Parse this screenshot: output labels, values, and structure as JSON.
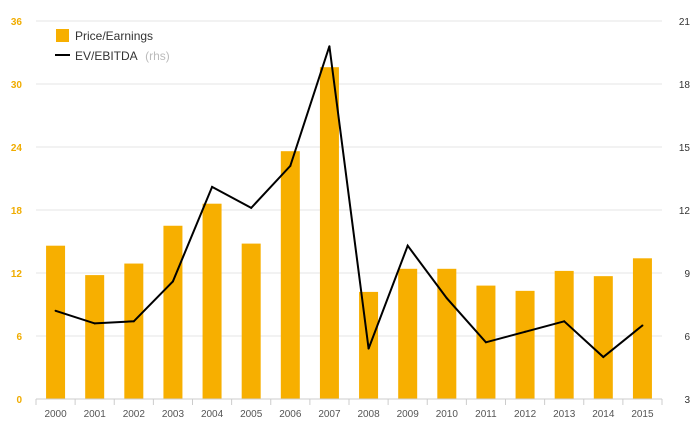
{
  "chart_data": {
    "type": "bar+line",
    "categories": [
      "2000",
      "2001",
      "2002",
      "2003",
      "2004",
      "2005",
      "2006",
      "2007",
      "2008",
      "2009",
      "2010",
      "2011",
      "2012",
      "2013",
      "2014",
      "2015"
    ],
    "series": [
      {
        "name": "Price/Earnings",
        "type": "bar",
        "axis": "left",
        "color": "#f7af00",
        "values": [
          14.6,
          11.8,
          12.9,
          16.5,
          18.6,
          14.8,
          23.6,
          31.6,
          10.2,
          12.4,
          12.4,
          10.8,
          10.3,
          12.2,
          11.7,
          13.4
        ]
      },
      {
        "name": "EV/EBITDA",
        "name_note": "(rhs)",
        "type": "line",
        "axis": "right",
        "color": "#000000",
        "values": [
          7.2,
          6.6,
          6.7,
          8.6,
          13.1,
          12.1,
          14.1,
          19.8,
          5.4,
          10.3,
          7.8,
          5.7,
          6.2,
          6.7,
          5.0,
          6.5
        ]
      }
    ],
    "yleft": {
      "lim": [
        0,
        36
      ],
      "ticks": [
        "0",
        "6",
        "12",
        "18",
        "24",
        "30",
        "36"
      ],
      "tick_color": "#f0ac00"
    },
    "yright": {
      "lim": [
        3,
        21
      ],
      "ticks": [
        "3",
        "6",
        "9",
        "12",
        "15",
        "18",
        "21"
      ],
      "tick_color": "#333333"
    },
    "grid": true,
    "legend_position": "top-left"
  }
}
